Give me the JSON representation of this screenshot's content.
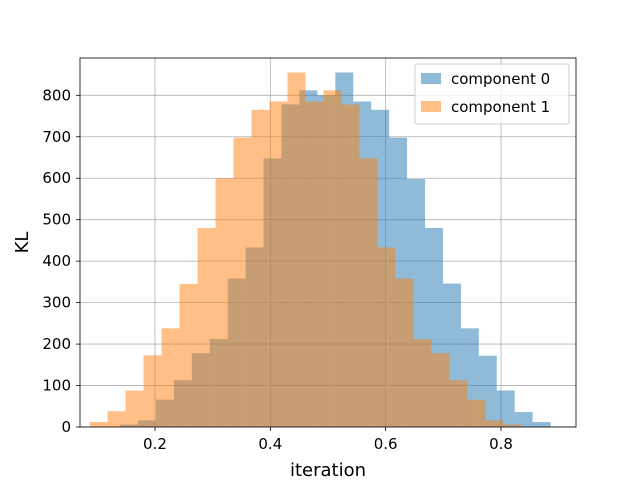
{
  "chart_data": {
    "type": "histogram",
    "title": "",
    "xlabel": "iteration",
    "ylabel": "KL",
    "xlim": [
      0.07,
      0.93
    ],
    "ylim": [
      0,
      890
    ],
    "xticks": [
      0.2,
      0.4,
      0.6,
      0.8
    ],
    "xtick_labels": [
      "0.2",
      "0.4",
      "0.6",
      "0.8"
    ],
    "yticks": [
      0,
      100,
      200,
      300,
      400,
      500,
      600,
      700,
      800
    ],
    "ytick_labels": [
      "0",
      "100",
      "200",
      "300",
      "400",
      "500",
      "600",
      "700",
      "800"
    ],
    "grid": true,
    "legend_position": "top-right",
    "alpha": 0.5,
    "series": [
      {
        "name": "component 0",
        "color": "#1f77b4",
        "bin_start": 0.1395,
        "bin_width": 0.0311,
        "counts": [
          6,
          16,
          66,
          113,
          178,
          212,
          358,
          433,
          648,
          778,
          812,
          800,
          855,
          785,
          765,
          698,
          598,
          480,
          346,
          238,
          172,
          88,
          36,
          12
        ]
      },
      {
        "name": "component 1",
        "color": "#ff7f0e",
        "bin_start": 0.0866,
        "bin_width": 0.0312,
        "counts": [
          12,
          38,
          88,
          173,
          238,
          345,
          480,
          600,
          698,
          765,
          785,
          855,
          785,
          812,
          778,
          648,
          433,
          358,
          212,
          178,
          113,
          66,
          16,
          6
        ]
      }
    ]
  }
}
